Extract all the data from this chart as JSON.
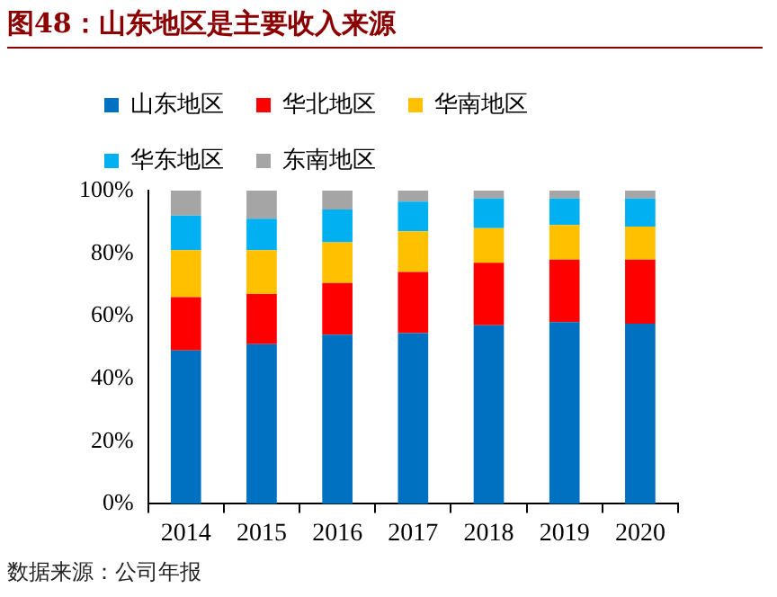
{
  "chart_data": {
    "type": "bar",
    "title": "图48：山东地区是主要收入来源",
    "stacked": true,
    "categories": [
      "2014",
      "2015",
      "2016",
      "2017",
      "2018",
      "2019",
      "2020"
    ],
    "series": [
      {
        "name": "山东地区",
        "color": "#0070c0",
        "values": [
          0.49,
          0.51,
          0.54,
          0.545,
          0.57,
          0.58,
          0.575
        ]
      },
      {
        "name": "华北地区",
        "color": "#ff0000",
        "values": [
          0.17,
          0.16,
          0.165,
          0.195,
          0.2,
          0.2,
          0.205
        ]
      },
      {
        "name": "华南地区",
        "color": "#ffc000",
        "values": [
          0.15,
          0.14,
          0.13,
          0.13,
          0.11,
          0.11,
          0.105
        ]
      },
      {
        "name": "华东地区",
        "color": "#00b0f0",
        "values": [
          0.11,
          0.1,
          0.105,
          0.095,
          0.095,
          0.085,
          0.09
        ]
      },
      {
        "name": "东南地区",
        "color": "#a5a5a5",
        "values": [
          0.08,
          0.09,
          0.06,
          0.035,
          0.025,
          0.025,
          0.025
        ]
      }
    ],
    "ylim": [
      0,
      1
    ],
    "yticks": [
      {
        "value": 0,
        "label": "0%"
      },
      {
        "value": 0.2,
        "label": "20%"
      },
      {
        "value": 0.4,
        "label": "40%"
      },
      {
        "value": 0.6,
        "label": "60%"
      },
      {
        "value": 0.8,
        "label": "80%"
      },
      {
        "value": 1,
        "label": "100%"
      }
    ],
    "grid": false,
    "legend": "top",
    "annotations": [
      "数据来源：公司年报"
    ]
  }
}
